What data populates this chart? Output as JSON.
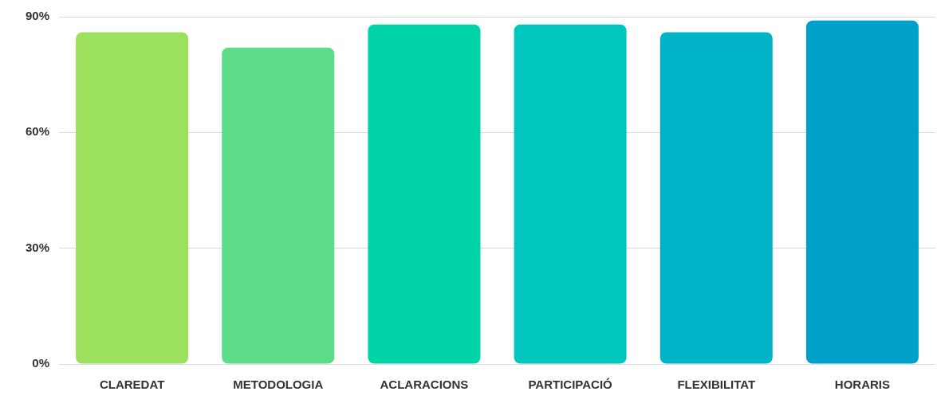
{
  "chart_data": {
    "type": "bar",
    "categories": [
      "CLAREDAT",
      "METODOLOGIA",
      "ACLARACIONS",
      "PARTICIPACIÓ",
      "FLEXIBILITAT",
      "HORARIS"
    ],
    "values": [
      86,
      82,
      88,
      88,
      86,
      89
    ],
    "colors": [
      "#9be15d",
      "#5cdb89",
      "#00d3a7",
      "#00c6bd",
      "#00b3c7",
      "#00a1c9"
    ],
    "ylim": [
      0,
      90
    ],
    "yticks": [
      {
        "value": 0,
        "label": "0%"
      },
      {
        "value": 30,
        "label": "30%"
      },
      {
        "value": 60,
        "label": "60%"
      },
      {
        "value": 90,
        "label": "90%"
      }
    ],
    "grid": "y",
    "legend": false
  }
}
